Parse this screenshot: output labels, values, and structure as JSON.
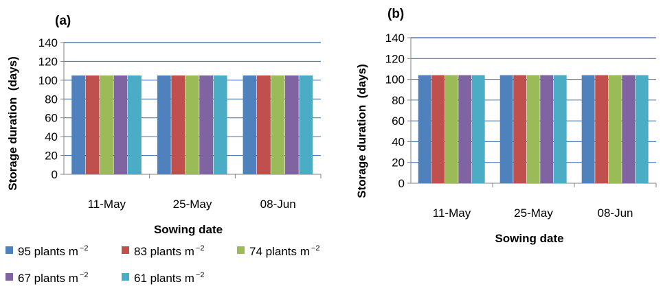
{
  "chart_data": [
    {
      "type": "bar",
      "panel_label": "(a)",
      "categories": [
        "11-May",
        "25-May",
        "08-Jun"
      ],
      "series": [
        {
          "name": "95 plants m⁻²",
          "values": [
            105,
            105,
            105
          ]
        },
        {
          "name": "83 plants m⁻²",
          "values": [
            105,
            105,
            105
          ]
        },
        {
          "name": "74 plants m⁻²",
          "values": [
            105,
            105,
            105
          ]
        },
        {
          "name": "67 plants m⁻²",
          "values": [
            105,
            105,
            105
          ]
        },
        {
          "name": "61 plants m⁻²",
          "values": [
            105,
            105,
            105
          ]
        }
      ],
      "xlabel": "Sowing date",
      "ylabel": "Storage duration  (days)",
      "ylim": [
        0,
        140
      ],
      "yticks": [
        0,
        20,
        40,
        60,
        80,
        100,
        120,
        140
      ],
      "grid": true,
      "legend": "bottom"
    },
    {
      "type": "bar",
      "panel_label": "(b)",
      "categories": [
        "11-May",
        "25-May",
        "08-Jun"
      ],
      "series": [
        {
          "name": "95 plants m⁻²",
          "values": [
            104,
            104,
            104
          ]
        },
        {
          "name": "83 plants m⁻²",
          "values": [
            104,
            104,
            104
          ]
        },
        {
          "name": "74 plants m⁻²",
          "values": [
            104,
            104,
            104
          ]
        },
        {
          "name": "67 plants m⁻²",
          "values": [
            104,
            104,
            104
          ]
        },
        {
          "name": "61 plants m⁻²",
          "values": [
            104,
            104,
            104
          ]
        }
      ],
      "xlabel": "Sowing date",
      "ylabel": "Storage duration  (days)",
      "ylim": [
        0,
        140
      ],
      "yticks": [
        0,
        20,
        40,
        60,
        80,
        100,
        120,
        140
      ],
      "grid": true,
      "legend": "none"
    }
  ],
  "legend": {
    "items": [
      {
        "label": "95 plants m",
        "sup": "−2",
        "color": "#4f81bd"
      },
      {
        "label": "83 plants m",
        "sup": "−2",
        "color": "#c0504d"
      },
      {
        "label": "74 plants m",
        "sup": "−2",
        "color": "#9bbb59"
      },
      {
        "label": "67 plants m",
        "sup": "−2",
        "color": "#8064a2"
      },
      {
        "label": "61 plants m",
        "sup": "−2",
        "color": "#4bacc6"
      }
    ]
  },
  "colors": [
    "#4f81bd",
    "#c0504d",
    "#9bbb59",
    "#8064a2",
    "#4bacc6"
  ],
  "gridline_color": "#4a7ebb"
}
